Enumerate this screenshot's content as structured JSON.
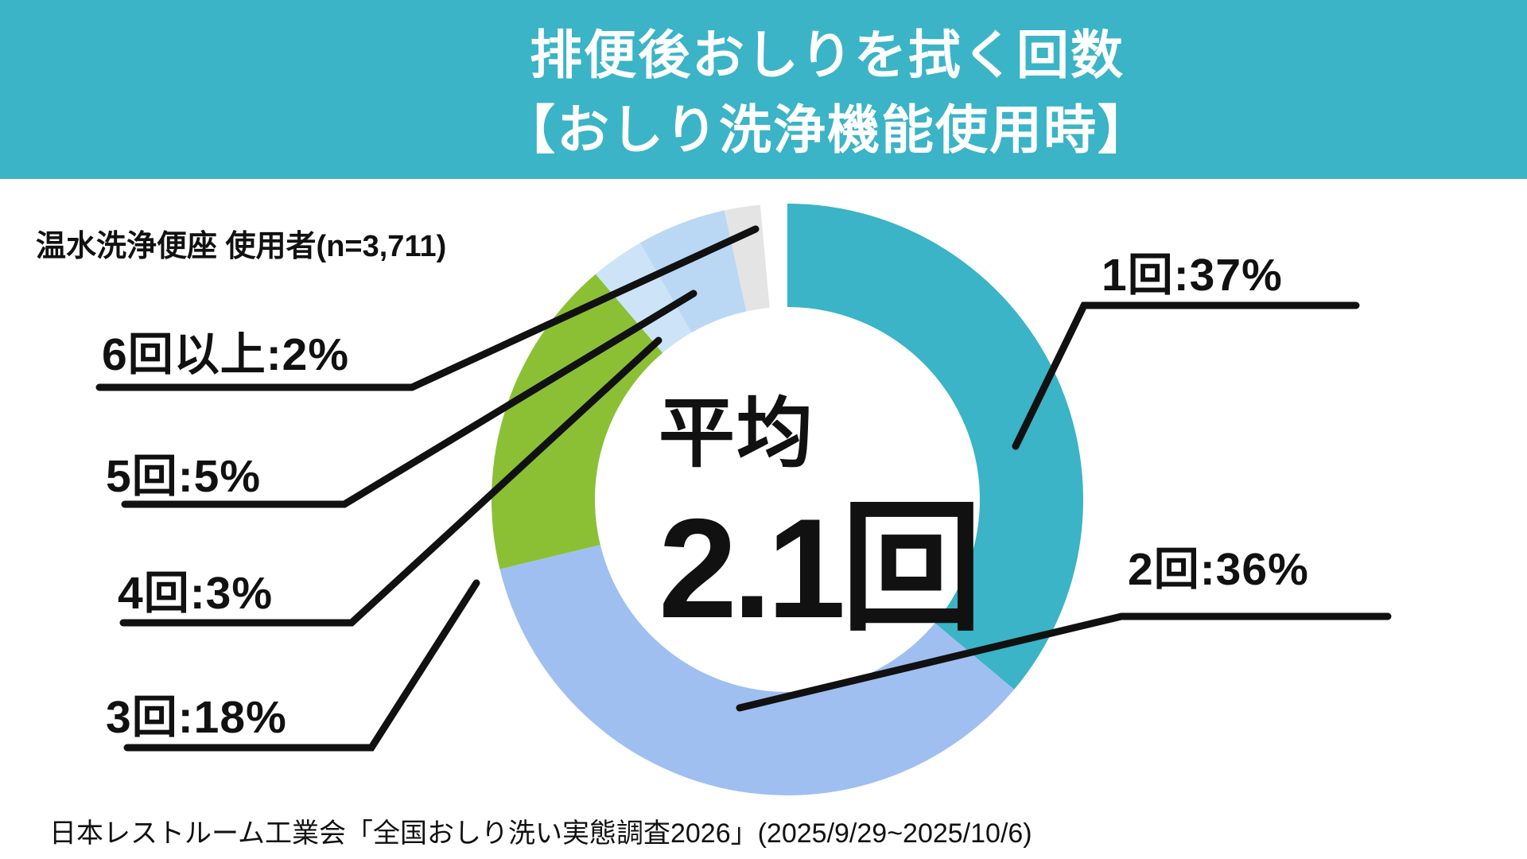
{
  "header": {
    "title_line1": "排便後おしりを拭く回数",
    "title_line2": "【おしり洗浄機能使用時】",
    "bg_color": "#3ab4c6",
    "text_color": "#ffffff"
  },
  "sample_label": "温水洗浄便座 使用者(n=3,711)",
  "center": {
    "label": "平均",
    "value": "2.1回"
  },
  "source": "日本レストルーム工業会「全国おしり洗い実態調査2026」(2025/9/29~2025/10/6)",
  "chart_data": {
    "type": "pie",
    "subtype": "donut",
    "title": "排便後おしりを拭く回数【おしり洗浄機能使用時】",
    "sample": "温水洗浄便座 使用者 n=3,711",
    "categories": [
      "1回",
      "2回",
      "3回",
      "4回",
      "5回",
      "6回以上"
    ],
    "values": [
      37,
      36,
      18,
      3,
      5,
      2
    ],
    "unit": "%",
    "colors": [
      "#3ab4c6",
      "#9fbff1",
      "#8bc034",
      "#cde4f8",
      "#bad8f3",
      "#e4e4e4"
    ],
    "labels": [
      "1回:37%",
      "2回:36%",
      "3回:18%",
      "4回:3%",
      "5回:5%",
      "6回以上:2%"
    ],
    "center_label": "平均",
    "center_value": "2.1回",
    "start_angle_deg": 0,
    "clockwise": true,
    "gap_units": 1.5,
    "leader_line_color": "#111111",
    "legend_position": "callouts"
  }
}
